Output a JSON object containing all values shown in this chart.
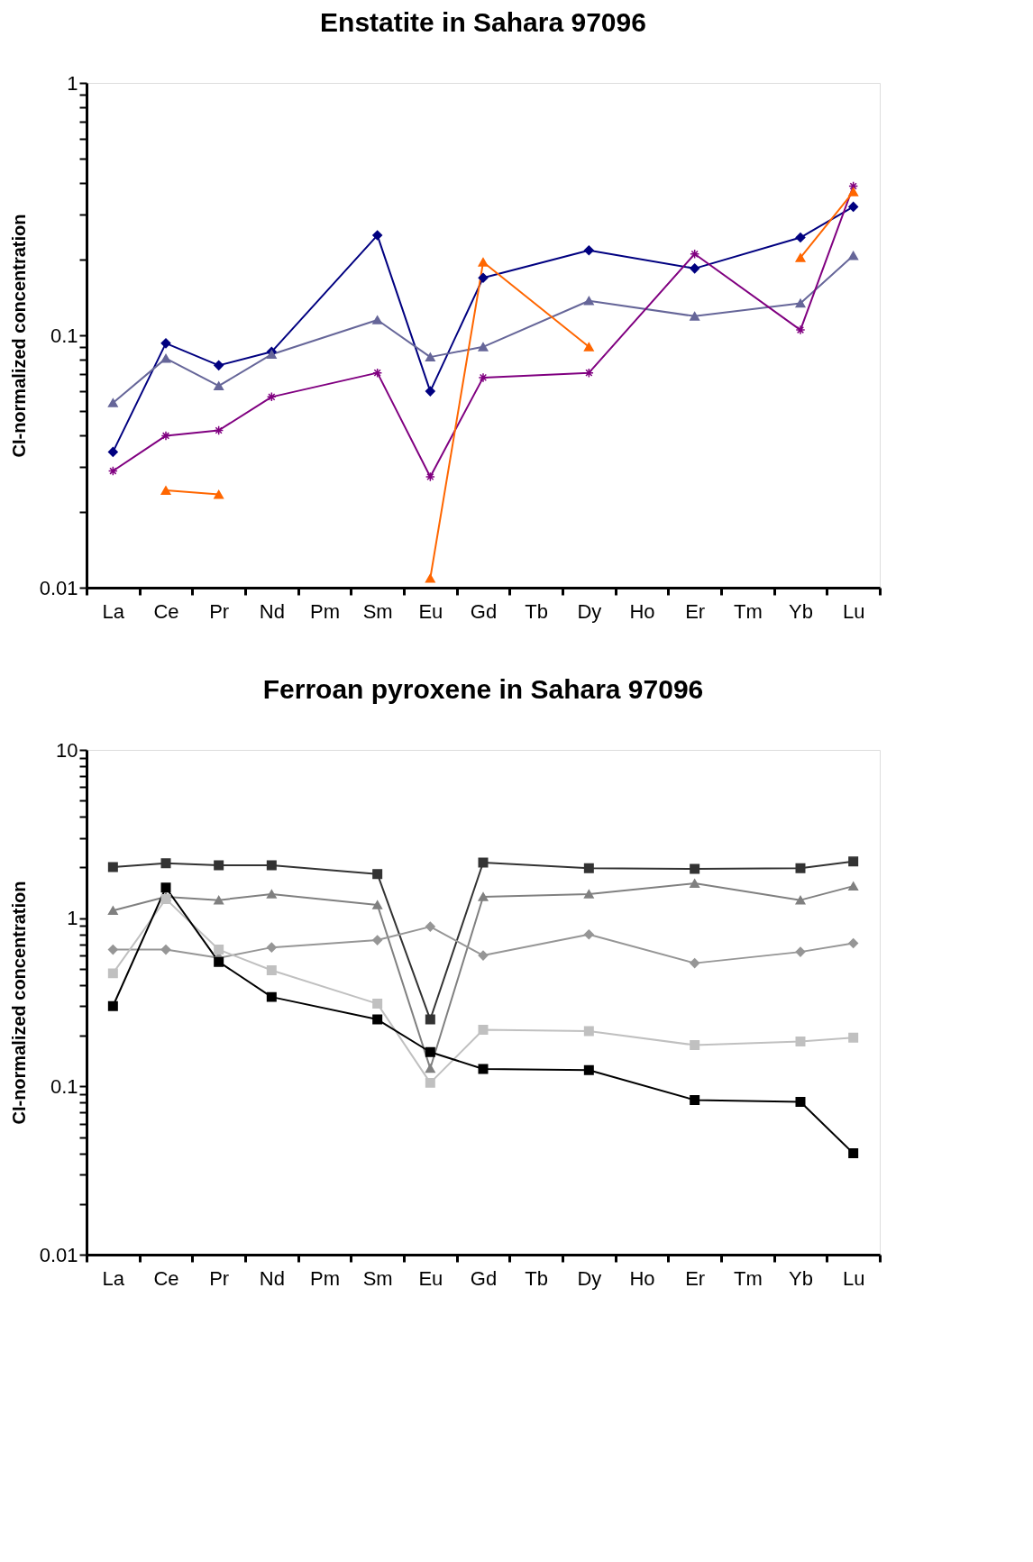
{
  "chart_data": [
    {
      "type": "line",
      "title": "Enstatite in Sahara 97096",
      "ylabel": "CI-normalized concentration",
      "log": true,
      "grid": false,
      "legend": false,
      "categories": [
        "La",
        "Ce",
        "Pr",
        "Nd",
        "Pm",
        "Sm",
        "Eu",
        "Gd",
        "Tb",
        "Dy",
        "Ho",
        "Er",
        "Tm",
        "Yb",
        "Lu"
      ],
      "ylim": [
        0.01,
        1
      ],
      "yticks": [
        0.01,
        {
          "value": 0.02,
          "label": null
        },
        {
          "value": 0.03,
          "label": null
        },
        {
          "value": 0.04,
          "label": null
        },
        {
          "value": 0.05,
          "label": null
        },
        {
          "value": 0.06,
          "label": null
        },
        {
          "value": 0.07,
          "label": null
        },
        {
          "value": 0.08,
          "label": null
        },
        {
          "value": 0.09,
          "label": null
        },
        0.1,
        {
          "value": 0.2,
          "label": null
        },
        {
          "value": 0.3,
          "label": null
        },
        {
          "value": 0.4,
          "label": null
        },
        {
          "value": 0.5,
          "label": null
        },
        {
          "value": 0.6,
          "label": null
        },
        {
          "value": 0.7,
          "label": null
        },
        {
          "value": 0.8,
          "label": null
        },
        {
          "value": 0.9,
          "label": null
        },
        1
      ],
      "series": [
        {
          "color": "#000080",
          "marker": "diamond",
          "values": [
            0.0345,
            0.093,
            0.076,
            0.086,
            null,
            0.249,
            0.06,
            0.169,
            null,
            0.217,
            null,
            0.184,
            null,
            0.244,
            0.323
          ]
        },
        {
          "color": "#666699",
          "marker": "triangle",
          "values": [
            0.054,
            0.081,
            0.063,
            0.084,
            null,
            0.115,
            0.082,
            0.09,
            null,
            0.137,
            null,
            0.119,
            null,
            0.134,
            0.207
          ]
        },
        {
          "color": "#800080",
          "marker": "cross",
          "values": [
            0.029,
            0.04,
            0.042,
            0.057,
            null,
            0.071,
            0.0275,
            0.068,
            null,
            0.071,
            null,
            0.21,
            null,
            0.105,
            0.39
          ]
        },
        {
          "color": "#ff6600",
          "marker": "triangle",
          "values": [
            null,
            0.0243,
            0.0234,
            null,
            null,
            null,
            null,
            null,
            null,
            null,
            null,
            null,
            null,
            null,
            null
          ]
        },
        {
          "color": "#ff6600",
          "marker": "triangle",
          "values": [
            null,
            null,
            null,
            null,
            null,
            null,
            0.0109,
            0.195,
            null,
            0.09,
            null,
            null,
            null,
            null,
            null
          ]
        },
        {
          "color": "#ff6600",
          "marker": "triangle",
          "values": [
            null,
            null,
            null,
            null,
            null,
            null,
            null,
            null,
            null,
            null,
            null,
            null,
            null,
            0.203,
            0.37
          ]
        }
      ]
    },
    {
      "type": "line",
      "title": "Ferroan pyroxene in Sahara 97096",
      "ylabel": "CI-normalized concentration",
      "log": true,
      "grid": false,
      "legend": false,
      "categories": [
        "La",
        "Ce",
        "Pr",
        "Nd",
        "Pm",
        "Sm",
        "Eu",
        "Gd",
        "Tb",
        "Dy",
        "Ho",
        "Er",
        "Tm",
        "Yb",
        "Lu"
      ],
      "ylim": [
        0.01,
        10
      ],
      "yticks": [
        0.01,
        {
          "value": 0.02,
          "label": null
        },
        {
          "value": 0.03,
          "label": null
        },
        {
          "value": 0.04,
          "label": null
        },
        {
          "value": 0.05,
          "label": null
        },
        {
          "value": 0.06,
          "label": null
        },
        {
          "value": 0.07,
          "label": null
        },
        {
          "value": 0.08,
          "label": null
        },
        {
          "value": 0.09,
          "label": null
        },
        0.1,
        {
          "value": 0.2,
          "label": null
        },
        {
          "value": 0.3,
          "label": null
        },
        {
          "value": 0.4,
          "label": null
        },
        {
          "value": 0.5,
          "label": null
        },
        {
          "value": 0.6,
          "label": null
        },
        {
          "value": 0.7,
          "label": null
        },
        {
          "value": 0.8,
          "label": null
        },
        {
          "value": 0.9,
          "label": null
        },
        1,
        {
          "value": 2,
          "label": null
        },
        {
          "value": 3,
          "label": null
        },
        {
          "value": 4,
          "label": null
        },
        {
          "value": 5,
          "label": null
        },
        {
          "value": 6,
          "label": null
        },
        {
          "value": 7,
          "label": null
        },
        {
          "value": 8,
          "label": null
        },
        {
          "value": 9,
          "label": null
        },
        10
      ],
      "series": [
        {
          "color": "#333333",
          "marker": "square",
          "values": [
            2.01,
            2.12,
            2.06,
            2.06,
            null,
            1.83,
            0.25,
            2.14,
            null,
            1.98,
            null,
            1.96,
            null,
            1.98,
            2.17
          ]
        },
        {
          "color": "#808080",
          "marker": "triangle",
          "values": [
            1.11,
            1.34,
            1.28,
            1.39,
            null,
            1.2,
            0.128,
            1.34,
            null,
            1.39,
            null,
            1.61,
            null,
            1.28,
            1.55
          ]
        },
        {
          "color": "#969696",
          "marker": "diamond",
          "values": [
            0.65,
            0.65,
            0.58,
            0.67,
            null,
            0.74,
            0.89,
            0.6,
            null,
            0.8,
            null,
            0.54,
            null,
            0.63,
            0.71
          ]
        },
        {
          "color": "#c0c0c0",
          "marker": "square",
          "values": [
            0.47,
            1.3,
            0.65,
            0.49,
            null,
            0.31,
            0.105,
            0.217,
            null,
            0.213,
            null,
            0.176,
            null,
            0.185,
            0.195
          ]
        },
        {
          "color": "#000000",
          "marker": "square",
          "values": [
            0.3,
            1.52,
            0.55,
            0.34,
            null,
            0.25,
            0.16,
            0.127,
            null,
            0.125,
            null,
            0.083,
            null,
            0.081,
            0.04
          ]
        }
      ]
    }
  ]
}
